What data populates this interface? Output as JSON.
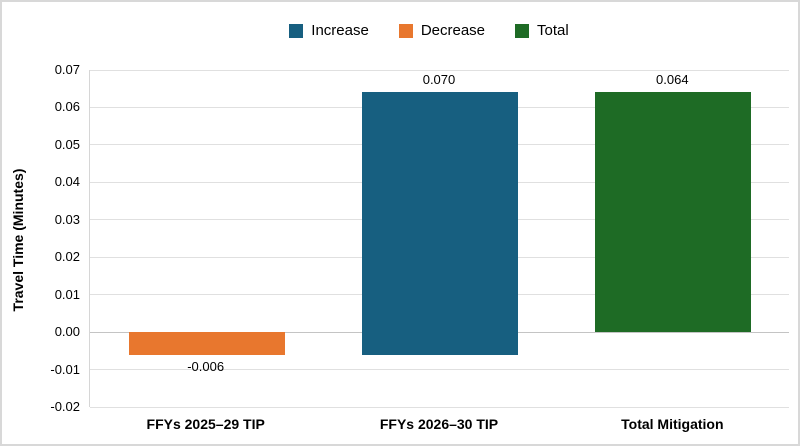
{
  "chart_data": {
    "type": "bar",
    "subtype": "waterfall",
    "title": "",
    "xlabel": "",
    "ylabel": "Travel Time (Minutes)",
    "categories": [
      "FFYs 2025–29 TIP",
      "FFYs 2026–30 TIP",
      "Total Mitigation"
    ],
    "series_of_bars": [
      "Decrease",
      "Increase",
      "Total"
    ],
    "values": [
      -0.006,
      0.07,
      0.064
    ],
    "bars": [
      {
        "category": "FFYs 2025–29 TIP",
        "series": "Decrease",
        "start": 0,
        "end": -0.006,
        "value_label": "-0.006",
        "color": "#E8772E",
        "label_position": "below"
      },
      {
        "category": "FFYs 2026–30 TIP",
        "series": "Increase",
        "start": -0.006,
        "end": 0.064,
        "value_label": "0.070",
        "color": "#175F80",
        "label_position": "above"
      },
      {
        "category": "Total Mitigation",
        "series": "Total",
        "start": 0,
        "end": 0.064,
        "value_label": "0.064",
        "color": "#1E6B25",
        "label_position": "above"
      }
    ],
    "ylim": [
      -0.02,
      0.07
    ],
    "ytick_step": 0.01,
    "yticks": [
      "0.07",
      "0.06",
      "0.05",
      "0.04",
      "0.03",
      "0.02",
      "0.01",
      "0.00",
      "-0.01",
      "-0.02"
    ],
    "grid": true,
    "legend": {
      "position": "top-center",
      "items": [
        {
          "label": "Increase",
          "color": "#175F80"
        },
        {
          "label": "Decrease",
          "color": "#E8772E"
        },
        {
          "label": "Total",
          "color": "#1E6B25"
        }
      ]
    },
    "colors": {
      "background": "#FFFFFF",
      "canvas_border": "#D8D8D8",
      "gridline": "#E0E0E0",
      "zero_line": "#C4C4C4",
      "axis_line": "#D6D6D6",
      "text": "#000000"
    }
  }
}
